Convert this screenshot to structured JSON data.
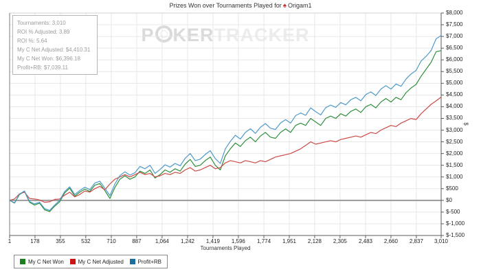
{
  "title": {
    "prefix": "Prizes Won over Tournaments Played for",
    "player": "Origam1",
    "icon_color": "#c43333"
  },
  "stats_box": {
    "lines": [
      "Tournaments: 3,010",
      "ROI % Adjusted: 3.89",
      "ROI %: 5.64",
      "My C Net Adjusted: $4,410.31",
      "My C Net Won: $6,396.18",
      "Profit+RB: $7,039.11"
    ]
  },
  "watermark": {
    "part1": "P",
    "part2": "KER",
    "part3": "TRACKER"
  },
  "colors": {
    "grid": "#e7e7e7",
    "zero_line": "#9a9a9a",
    "axis_dark": "#5a5a5a",
    "axis_left": "#7a7a7a",
    "axis_top": "#d2d2d2"
  },
  "chart_data": {
    "type": "line",
    "title": "Prizes Won over Tournaments Played for Origam1",
    "xlabel": "Tournaments Played",
    "ylabel": "$",
    "grid": true,
    "legend_position": "bottom-left",
    "xlim": [
      1,
      3010
    ],
    "ylim": [
      -1500,
      8000
    ],
    "x_ticks": [
      1,
      178,
      355,
      532,
      710,
      887,
      1064,
      1242,
      1419,
      1596,
      1774,
      1951,
      2128,
      2305,
      2483,
      2660,
      2837,
      3010
    ],
    "x_tick_labels": [
      "1",
      "178",
      "355",
      "532",
      "710",
      "887",
      "1,064",
      "1,242",
      "1,419",
      "1,596",
      "1,774",
      "1,951",
      "2,128",
      "2,305",
      "2,483",
      "2,660",
      "2,837",
      "3,010"
    ],
    "y_ticks": [
      8000,
      7500,
      7000,
      6500,
      6000,
      5500,
      5000,
      4500,
      4000,
      3500,
      3000,
      2500,
      2000,
      1500,
      1000,
      500,
      0,
      -500,
      -1000,
      -1500
    ],
    "y_tick_labels": [
      "$8,000",
      "$7,500",
      "$7,000",
      "$6,500",
      "$6,000",
      "$5,500",
      "$5,000",
      "$4,500",
      "$4,000",
      "$3,500",
      "$3,000",
      "$2,500",
      "$2,000",
      "$1,500",
      "$1,000",
      "$500",
      "$0",
      "$-500",
      "$-1,000",
      "$-1,500"
    ],
    "x": [
      1,
      35,
      70,
      105,
      140,
      175,
      210,
      245,
      280,
      315,
      350,
      385,
      420,
      455,
      490,
      525,
      560,
      595,
      630,
      665,
      700,
      735,
      770,
      805,
      840,
      875,
      910,
      945,
      980,
      1015,
      1050,
      1085,
      1120,
      1155,
      1190,
      1225,
      1260,
      1295,
      1330,
      1365,
      1400,
      1435,
      1470,
      1505,
      1540,
      1575,
      1610,
      1645,
      1680,
      1715,
      1750,
      1785,
      1820,
      1855,
      1890,
      1925,
      1960,
      1995,
      2030,
      2065,
      2100,
      2135,
      2170,
      2205,
      2240,
      2275,
      2310,
      2345,
      2380,
      2415,
      2450,
      2485,
      2520,
      2555,
      2590,
      2625,
      2660,
      2695,
      2730,
      2765,
      2800,
      2835,
      2870,
      2905,
      2940,
      2975,
      3010
    ],
    "series": [
      {
        "name": "My C Net Won",
        "line_color": "#2f8f3c",
        "legend_color": "#1e7e1e",
        "final_value": 6396.18,
        "values": [
          0,
          -120,
          250,
          380,
          -80,
          -200,
          -120,
          -400,
          -480,
          -250,
          -60,
          320,
          520,
          180,
          350,
          480,
          380,
          650,
          720,
          420,
          80,
          550,
          900,
          1050,
          900,
          1000,
          1250,
          1150,
          1300,
          950,
          1100,
          1300,
          1200,
          1350,
          1250,
          1550,
          1750,
          1450,
          1500,
          1700,
          1850,
          1500,
          1300,
          1900,
          2200,
          2450,
          2300,
          2550,
          2700,
          2500,
          2750,
          2900,
          2700,
          2650,
          2900,
          3050,
          2900,
          3200,
          3300,
          3200,
          3500,
          3350,
          3200,
          3500,
          3600,
          3500,
          3700,
          3600,
          3800,
          3900,
          3750,
          4000,
          4100,
          3950,
          4200,
          4350,
          4200,
          4400,
          4300,
          4600,
          4800,
          4950,
          5300,
          5600,
          5900,
          6350,
          6396
        ]
      },
      {
        "name": "My C Net Adjusted",
        "line_color": "#cd4a45",
        "legend_color": "#cc1414",
        "final_value": 4410.31,
        "values": [
          0,
          60,
          280,
          350,
          80,
          60,
          20,
          -80,
          -60,
          40,
          60,
          220,
          350,
          150,
          250,
          400,
          350,
          500,
          600,
          450,
          700,
          900,
          1000,
          1100,
          1000,
          1100,
          1200,
          1100,
          1150,
          1000,
          1050,
          1150,
          1100,
          1200,
          1150,
          1300,
          1400,
          1250,
          1300,
          1400,
          1500,
          1350,
          1400,
          1600,
          1700,
          1650,
          1600,
          1700,
          1650,
          1600,
          1700,
          1650,
          1750,
          1850,
          1900,
          1950,
          2000,
          2100,
          2200,
          2350,
          2500,
          2400,
          2450,
          2500,
          2550,
          2500,
          2600,
          2650,
          2700,
          2750,
          2700,
          2800,
          2900,
          2850,
          3000,
          3100,
          3200,
          3150,
          3300,
          3400,
          3500,
          3450,
          3700,
          3900,
          4100,
          4250,
          4410
        ]
      },
      {
        "name": "Profit+RB",
        "line_color": "#4e9ac9",
        "legend_color": "#1a6f9e",
        "final_value": 7039.11,
        "values": [
          0,
          -100,
          270,
          400,
          -50,
          -150,
          -80,
          -350,
          -430,
          -200,
          0,
          380,
          580,
          250,
          420,
          560,
          460,
          740,
          820,
          520,
          200,
          700,
          1060,
          1220,
          1080,
          1180,
          1450,
          1350,
          1500,
          1150,
          1320,
          1520,
          1420,
          1580,
          1480,
          1800,
          2000,
          1700,
          1760,
          1960,
          2120,
          1780,
          1580,
          2200,
          2520,
          2780,
          2620,
          2900,
          3060,
          2860,
          3120,
          3280,
          3080,
          3030,
          3300,
          3450,
          3300,
          3620,
          3730,
          3630,
          3950,
          3790,
          3650,
          3960,
          4070,
          3970,
          4180,
          4080,
          4300,
          4400,
          4250,
          4520,
          4630,
          4480,
          4750,
          4900,
          4750,
          4970,
          4870,
          5180,
          5400,
          5550,
          5950,
          6150,
          6400,
          6900,
          7039
        ]
      }
    ]
  }
}
